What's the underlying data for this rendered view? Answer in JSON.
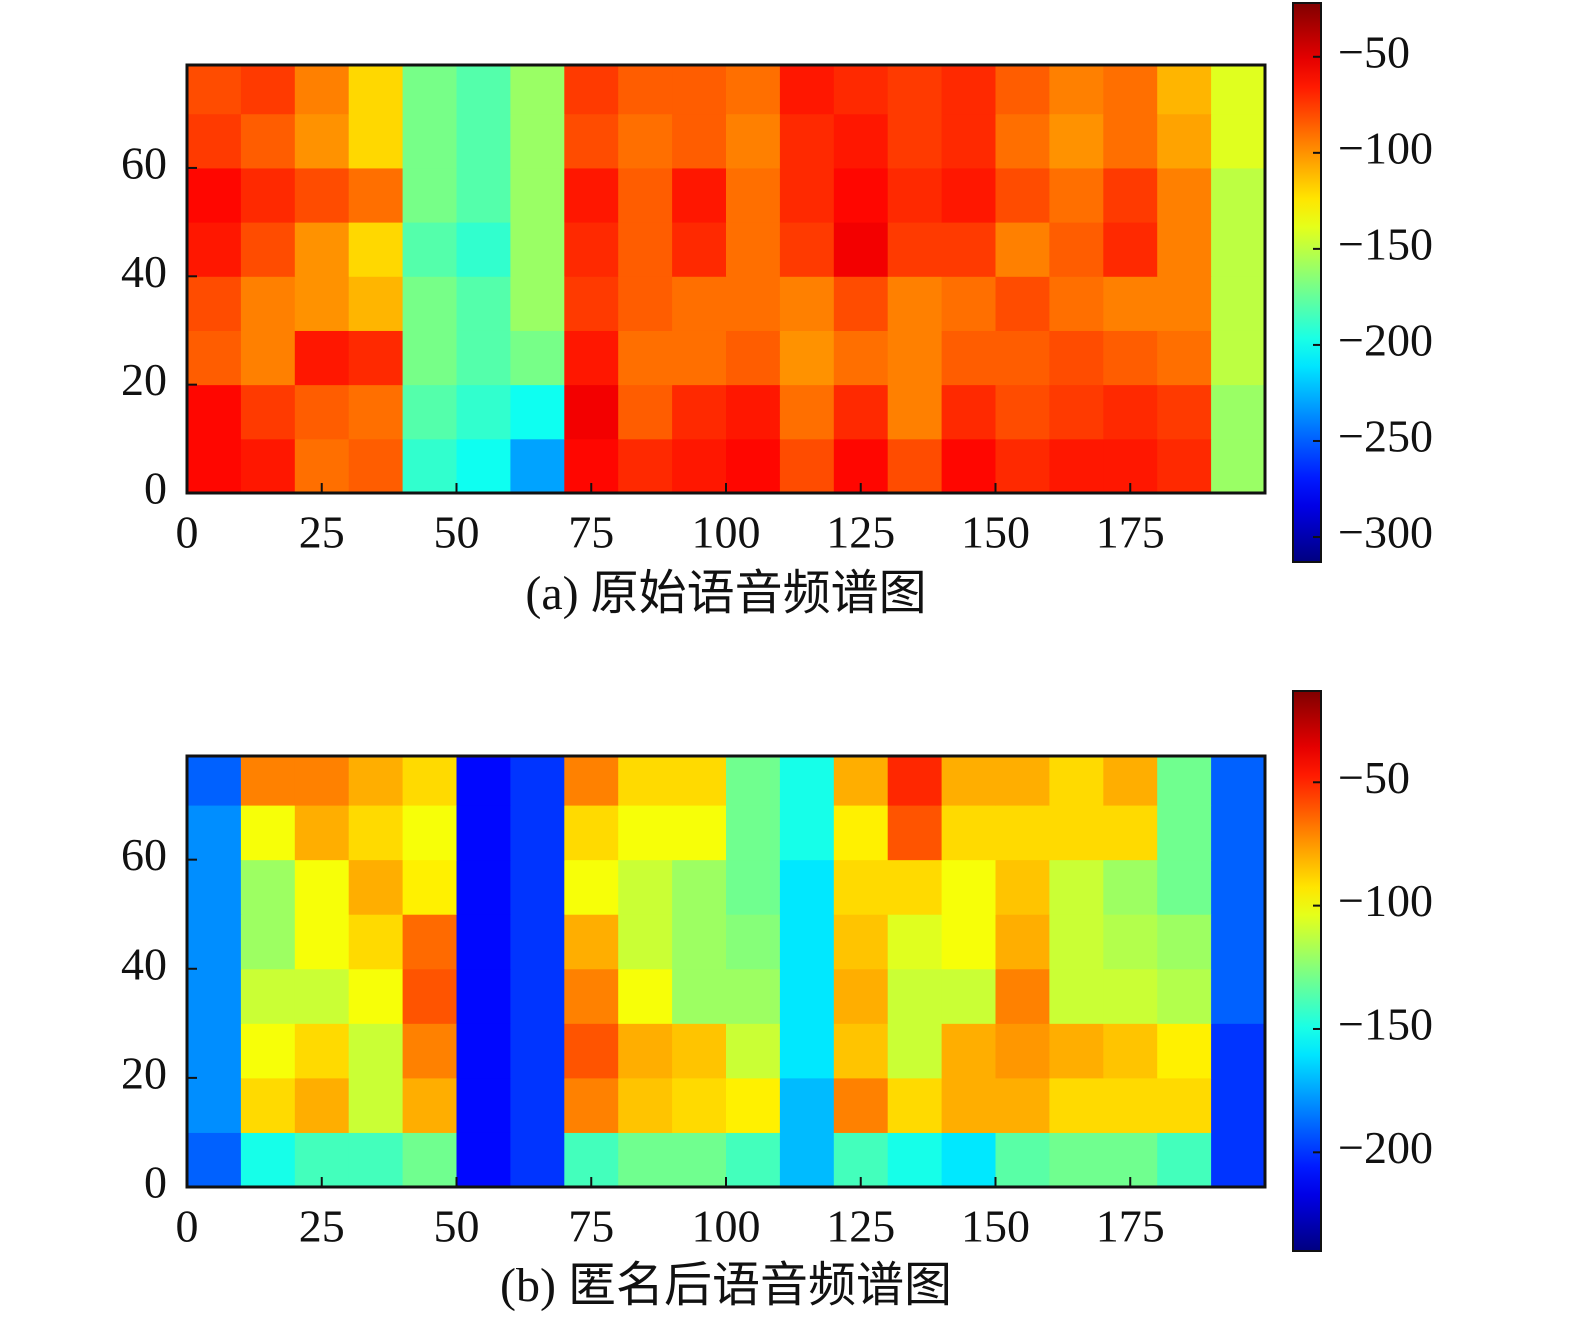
{
  "chart_data": [
    {
      "type": "heatmap",
      "caption": "(a) 原始语音频谱图",
      "colormap": "jet",
      "xbins": [
        0,
        10,
        20,
        30,
        40,
        50,
        60,
        70,
        80,
        90,
        100,
        110,
        120,
        130,
        140,
        150,
        160,
        170,
        180,
        190,
        200
      ],
      "ybins": [
        0,
        10,
        20,
        30,
        40,
        50,
        60,
        70,
        79
      ],
      "z": [
        [
          -60,
          -65,
          -90,
          -85,
          -190,
          -200,
          -230,
          -60,
          -70,
          -65,
          -60,
          -80,
          -60,
          -80,
          -60,
          -70,
          -65,
          -65,
          -70,
          -160
        ],
        [
          -60,
          -75,
          -85,
          -90,
          -180,
          -190,
          -200,
          -55,
          -85,
          -70,
          -65,
          -90,
          -70,
          -95,
          -70,
          -80,
          -75,
          -70,
          -75,
          -160
        ],
        [
          -85,
          -95,
          -65,
          -70,
          -170,
          -180,
          -170,
          -65,
          -90,
          -90,
          -85,
          -100,
          -90,
          -95,
          -85,
          -85,
          -80,
          -85,
          -90,
          -150
        ],
        [
          -80,
          -95,
          -100,
          -110,
          -170,
          -180,
          -160,
          -75,
          -85,
          -90,
          -90,
          -95,
          -80,
          -95,
          -90,
          -80,
          -90,
          -95,
          -95,
          -150
        ],
        [
          -65,
          -80,
          -100,
          -120,
          -180,
          -190,
          -160,
          -70,
          -85,
          -70,
          -90,
          -75,
          -55,
          -75,
          -75,
          -95,
          -85,
          -70,
          -95,
          -150
        ],
        [
          -60,
          -70,
          -80,
          -90,
          -170,
          -180,
          -160,
          -65,
          -85,
          -65,
          -90,
          -70,
          -60,
          -70,
          -65,
          -80,
          -90,
          -75,
          -95,
          -150
        ],
        [
          -75,
          -85,
          -100,
          -120,
          -170,
          -180,
          -160,
          -80,
          -90,
          -85,
          -95,
          -70,
          -65,
          -75,
          -70,
          -90,
          -100,
          -90,
          -105,
          -140
        ],
        [
          -80,
          -75,
          -95,
          -120,
          -170,
          -180,
          -160,
          -75,
          -85,
          -85,
          -90,
          -65,
          -70,
          -75,
          -70,
          -85,
          -95,
          -90,
          -110,
          -140
        ]
      ],
      "xlim": [
        0,
        200
      ],
      "ylim": [
        0,
        79
      ],
      "xticks": [
        0,
        25,
        50,
        75,
        100,
        125,
        150,
        175
      ],
      "yticks": [
        0,
        20,
        40,
        60
      ],
      "clim": [
        -313,
        -22
      ],
      "cticks": [
        {
          "value": -50,
          "label": "−50"
        },
        {
          "value": -100,
          "label": "−100"
        },
        {
          "value": -150,
          "label": "−150"
        },
        {
          "value": -200,
          "label": "−200"
        },
        {
          "value": -250,
          "label": "−250"
        },
        {
          "value": -300,
          "label": "−300"
        }
      ]
    },
    {
      "type": "heatmap",
      "caption": "(b) 匿名后语音频谱图",
      "colormap": "jet",
      "xbins": [
        0,
        10,
        20,
        30,
        40,
        50,
        60,
        70,
        80,
        90,
        100,
        110,
        120,
        130,
        140,
        150,
        160,
        170,
        180,
        190,
        200
      ],
      "ybins": [
        0,
        10,
        20,
        30,
        40,
        50,
        60,
        70,
        79
      ],
      "z": [
        [
          -190,
          -150,
          -140,
          -140,
          -130,
          -210,
          -200,
          -140,
          -130,
          -130,
          -140,
          -170,
          -140,
          -150,
          -160,
          -135,
          -130,
          -130,
          -140,
          -200
        ],
        [
          -180,
          -90,
          -80,
          -110,
          -80,
          -210,
          -200,
          -70,
          -85,
          -90,
          -95,
          -170,
          -70,
          -90,
          -80,
          -80,
          -90,
          -90,
          -90,
          -200
        ],
        [
          -180,
          -100,
          -90,
          -110,
          -70,
          -210,
          -200,
          -60,
          -80,
          -85,
          -110,
          -160,
          -85,
          -110,
          -80,
          -75,
          -80,
          -85,
          -95,
          -200
        ],
        [
          -180,
          -110,
          -110,
          -100,
          -60,
          -210,
          -200,
          -70,
          -100,
          -120,
          -120,
          -160,
          -80,
          -110,
          -110,
          -70,
          -110,
          -110,
          -115,
          -190
        ],
        [
          -180,
          -120,
          -100,
          -90,
          -65,
          -210,
          -200,
          -80,
          -110,
          -120,
          -125,
          -160,
          -85,
          -105,
          -100,
          -80,
          -110,
          -115,
          -120,
          -190
        ],
        [
          -180,
          -120,
          -100,
          -80,
          -95,
          -210,
          -200,
          -100,
          -110,
          -120,
          -130,
          -160,
          -90,
          -90,
          -100,
          -85,
          -110,
          -120,
          -130,
          -190
        ],
        [
          -180,
          -100,
          -80,
          -90,
          -100,
          -210,
          -200,
          -90,
          -100,
          -100,
          -130,
          -150,
          -95,
          -60,
          -90,
          -90,
          -90,
          -90,
          -130,
          -190
        ],
        [
          -190,
          -70,
          -70,
          -80,
          -90,
          -210,
          -200,
          -70,
          -90,
          -90,
          -130,
          -150,
          -80,
          -50,
          -80,
          -80,
          -90,
          -80,
          -130,
          -190
        ]
      ],
      "xlim": [
        0,
        200
      ],
      "ylim": [
        0,
        79
      ],
      "xticks": [
        0,
        25,
        50,
        75,
        100,
        125,
        150,
        175
      ],
      "yticks": [
        0,
        20,
        40,
        60
      ],
      "clim": [
        -240,
        -13
      ],
      "cticks": [
        {
          "value": -50,
          "label": "−50"
        },
        {
          "value": -100,
          "label": "−100"
        },
        {
          "value": -150,
          "label": "−150"
        },
        {
          "value": -200,
          "label": "−200"
        }
      ]
    }
  ]
}
